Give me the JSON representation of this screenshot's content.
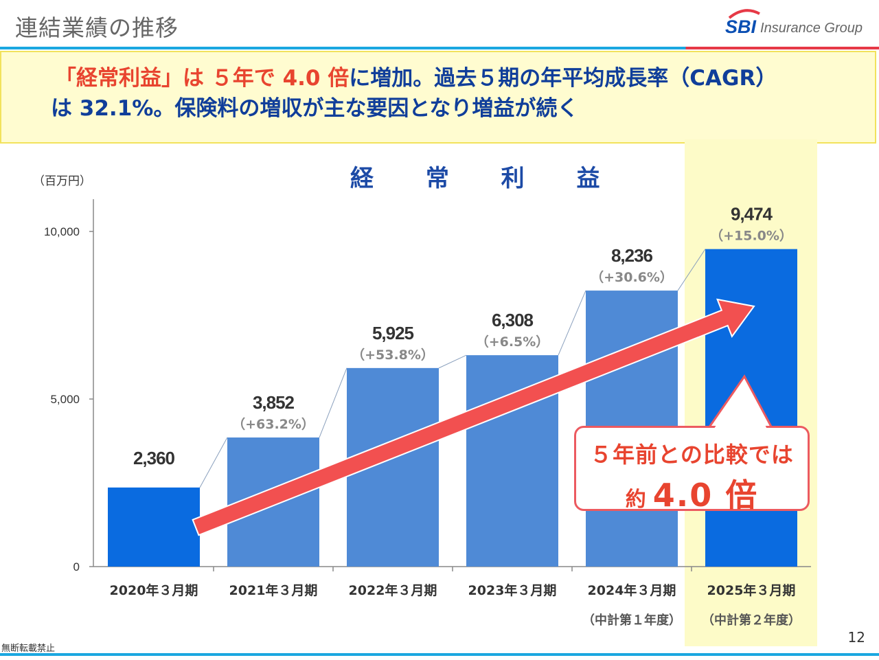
{
  "header": {
    "title": "連結業績の推移",
    "logo_mark": "SBI",
    "logo_text": "Insurance Group"
  },
  "headline": {
    "line1_red": "「経常利益」は ５年で 4.0 倍",
    "line1_rest": "に増加。過去５期の年平均成長率（CAGR）",
    "line2": "は 32.1%。保険料の増収が主な要因となり増益が続く"
  },
  "callout": {
    "line1": "５年前との比較では",
    "line2_small": "約",
    "line2_big": "4.0 倍"
  },
  "chart_data": {
    "type": "bar",
    "title": "経 常 利 益",
    "unit_label": "（百万円）",
    "ylim": [
      0,
      10000
    ],
    "yticks": [
      0,
      5000,
      10000
    ],
    "ytick_labels": [
      "0",
      "5,000",
      "10,000"
    ],
    "categories": [
      "2020年３月期",
      "2021年３月期",
      "2022年３月期",
      "2023年３月期",
      "2024年３月期",
      "2025年３月期"
    ],
    "sub_labels": [
      "",
      "",
      "",
      "",
      "（中計第１年度）",
      "（中計第２年度）"
    ],
    "values": [
      2360,
      3852,
      5925,
      6308,
      8236,
      9474
    ],
    "value_labels": [
      "2,360",
      "3,852",
      "5,925",
      "6,308",
      "8,236",
      "9,474"
    ],
    "growth_labels": [
      "",
      "（+63.2%）",
      "（+53.8%）",
      "（+6.5%）",
      "（+30.6%）",
      "（+15.0%）"
    ],
    "colors": {
      "highlight_bar": "#0a6be0",
      "bar": "#4f8ad6",
      "trend_arrow": "#f25050",
      "axis": "#888888"
    },
    "highlighted": [
      0,
      5
    ]
  },
  "footer": {
    "note": "無断転載禁止",
    "page_number": "12"
  }
}
